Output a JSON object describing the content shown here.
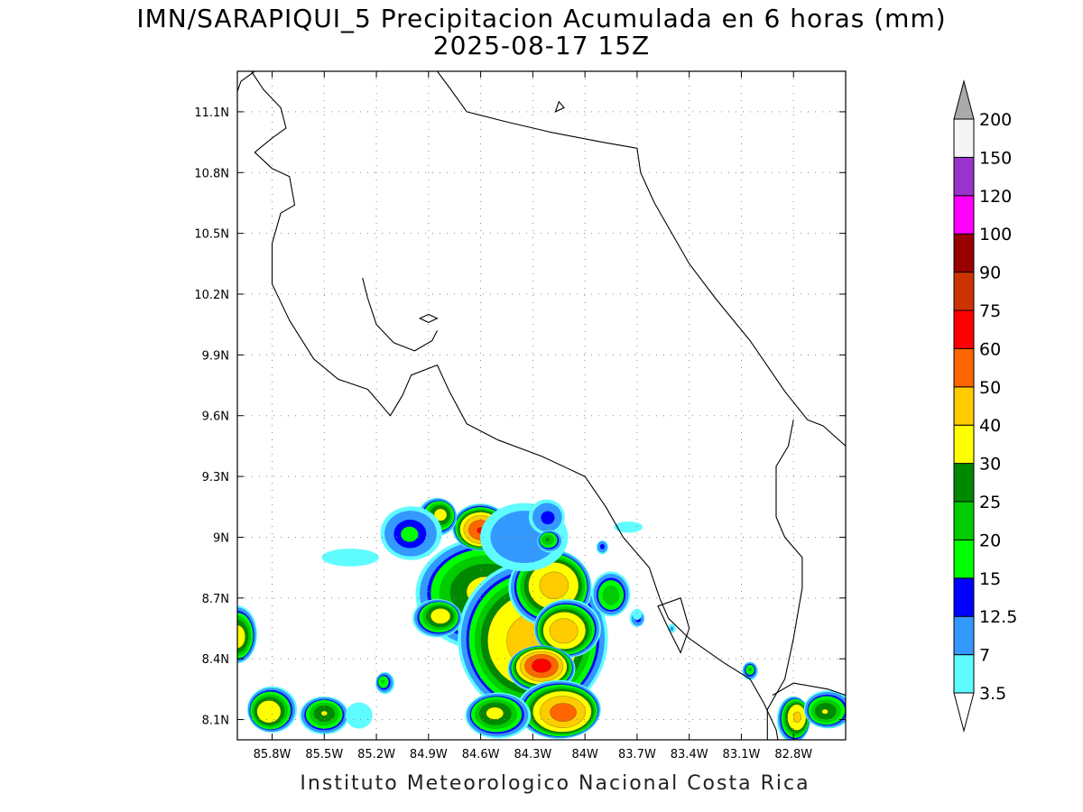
{
  "title": "IMN/SARAPIQUI_5 Precipitacion Acumulada en 6 horas (mm)",
  "subtitle": "2025-08-17 15Z",
  "credit": "Instituto Meteorologico Nacional Costa Rica",
  "map": {
    "lon_range": [
      -86.0,
      -82.5
    ],
    "lat_range": [
      8.0,
      11.3
    ],
    "lon_ticks": [
      {
        "value": -85.8,
        "label": "85.8W"
      },
      {
        "value": -85.5,
        "label": "85.5W"
      },
      {
        "value": -85.2,
        "label": "85.2W"
      },
      {
        "value": -84.9,
        "label": "84.9W"
      },
      {
        "value": -84.6,
        "label": "84.6W"
      },
      {
        "value": -84.3,
        "label": "84.3W"
      },
      {
        "value": -84.0,
        "label": "84W"
      },
      {
        "value": -83.7,
        "label": "83.7W"
      },
      {
        "value": -83.4,
        "label": "83.4W"
      },
      {
        "value": -83.1,
        "label": "83.1W"
      },
      {
        "value": -82.8,
        "label": "82.8W"
      }
    ],
    "lat_ticks": [
      {
        "value": 8.1,
        "label": "8.1N"
      },
      {
        "value": 8.4,
        "label": "8.4N"
      },
      {
        "value": 8.7,
        "label": "8.7N"
      },
      {
        "value": 9.0,
        "label": "9N"
      },
      {
        "value": 9.3,
        "label": "9.3N"
      },
      {
        "value": 9.6,
        "label": "9.6N"
      },
      {
        "value": 9.9,
        "label": "9.9N"
      },
      {
        "value": 10.2,
        "label": "10.2N"
      },
      {
        "value": 10.5,
        "label": "10.5N"
      },
      {
        "value": 10.8,
        "label": "10.8N"
      },
      {
        "value": 11.1,
        "label": "11.1N"
      }
    ],
    "grid": true,
    "coastline": [
      [
        [
          -85.92,
          11.3
        ],
        [
          -85.85,
          11.21
        ],
        [
          -85.75,
          11.12
        ],
        [
          -85.72,
          11.02
        ],
        [
          -85.8,
          10.97
        ],
        [
          -85.9,
          10.9
        ],
        [
          -85.8,
          10.82
        ],
        [
          -85.7,
          10.78
        ],
        [
          -85.67,
          10.64
        ],
        [
          -85.75,
          10.6
        ],
        [
          -85.8,
          10.45
        ],
        [
          -85.8,
          10.25
        ],
        [
          -85.7,
          10.07
        ],
        [
          -85.56,
          9.88
        ],
        [
          -85.42,
          9.78
        ],
        [
          -85.25,
          9.73
        ],
        [
          -85.12,
          9.6
        ],
        [
          -85.05,
          9.7
        ],
        [
          -85.0,
          9.8
        ],
        [
          -84.85,
          9.85
        ],
        [
          -84.78,
          9.72
        ],
        [
          -84.68,
          9.56
        ],
        [
          -84.5,
          9.48
        ],
        [
          -84.25,
          9.4
        ],
        [
          -84.0,
          9.3
        ],
        [
          -83.88,
          9.15
        ],
        [
          -83.78,
          9.0
        ],
        [
          -83.63,
          8.85
        ],
        [
          -83.57,
          8.7
        ],
        [
          -83.52,
          8.6
        ],
        [
          -83.4,
          8.5
        ],
        [
          -83.2,
          8.38
        ],
        [
          -83.05,
          8.3
        ],
        [
          -82.97,
          8.18
        ],
        [
          -82.9,
          8.05
        ],
        [
          -82.89,
          8.0
        ]
      ],
      [
        [
          -84.85,
          10.02
        ],
        [
          -84.88,
          9.97
        ],
        [
          -84.98,
          9.92
        ],
        [
          -85.1,
          9.96
        ],
        [
          -85.2,
          10.05
        ],
        [
          -85.25,
          10.18
        ],
        [
          -85.28,
          10.28
        ]
      ],
      [
        [
          -84.85,
          11.3
        ],
        [
          -84.78,
          11.22
        ],
        [
          -84.68,
          11.1
        ],
        [
          -84.45,
          11.05
        ],
        [
          -84.2,
          11.0
        ],
        [
          -83.9,
          10.95
        ],
        [
          -83.7,
          10.92
        ],
        [
          -83.68,
          10.8
        ],
        [
          -83.6,
          10.65
        ],
        [
          -83.4,
          10.35
        ],
        [
          -83.25,
          10.18
        ],
        [
          -83.05,
          9.97
        ],
        [
          -82.85,
          9.72
        ],
        [
          -82.72,
          9.58
        ],
        [
          -82.63,
          9.55
        ],
        [
          -82.5,
          9.45
        ]
      ],
      [
        [
          -82.8,
          9.58
        ],
        [
          -82.83,
          9.45
        ],
        [
          -82.9,
          9.35
        ],
        [
          -82.9,
          9.1
        ],
        [
          -82.85,
          9.0
        ],
        [
          -82.75,
          8.9
        ],
        [
          -82.75,
          8.75
        ],
        [
          -82.8,
          8.5
        ],
        [
          -82.85,
          8.3
        ],
        [
          -82.95,
          8.15
        ],
        [
          -82.95,
          8.0
        ]
      ],
      [
        [
          -82.92,
          8.22
        ],
        [
          -82.8,
          8.28
        ],
        [
          -82.6,
          8.25
        ],
        [
          -82.5,
          8.22
        ]
      ],
      [
        [
          -85.9,
          11.3
        ],
        [
          -85.98,
          11.25
        ],
        [
          -86.0,
          11.2
        ]
      ]
    ],
    "islands": [
      [
        [
          -84.15,
          11.15
        ],
        [
          -84.12,
          11.12
        ],
        [
          -84.17,
          11.1
        ],
        [
          -84.15,
          11.15
        ]
      ],
      [
        [
          -84.9,
          10.1
        ],
        [
          -84.85,
          10.08
        ],
        [
          -84.9,
          10.06
        ],
        [
          -84.95,
          10.08
        ],
        [
          -84.9,
          10.1
        ]
      ],
      [
        [
          -83.58,
          8.66
        ],
        [
          -83.45,
          8.7
        ],
        [
          -83.4,
          8.55
        ],
        [
          -83.45,
          8.43
        ],
        [
          -83.52,
          8.55
        ],
        [
          -83.58,
          8.66
        ]
      ]
    ],
    "rain_cells": [
      {
        "lon": -84.55,
        "lat": 8.72,
        "rx": 0.45,
        "ry": 0.3,
        "peak": 32
      },
      {
        "lon": -84.3,
        "lat": 8.5,
        "rx": 0.45,
        "ry": 0.4,
        "peak": 45
      },
      {
        "lon": -84.2,
        "lat": 8.75,
        "rx": 0.25,
        "ry": 0.2,
        "peak": 45
      },
      {
        "lon": -84.1,
        "lat": 8.55,
        "rx": 0.2,
        "ry": 0.15,
        "peak": 48
      },
      {
        "lon": -84.25,
        "lat": 8.35,
        "rx": 0.2,
        "ry": 0.12,
        "peak": 65
      },
      {
        "lon": -84.15,
        "lat": 8.15,
        "rx": 0.25,
        "ry": 0.15,
        "peak": 55
      },
      {
        "lon": -84.5,
        "lat": 8.12,
        "rx": 0.2,
        "ry": 0.12,
        "peak": 32
      },
      {
        "lon": -84.6,
        "lat": 9.05,
        "rx": 0.17,
        "ry": 0.12,
        "peak": 60
      },
      {
        "lon": -84.85,
        "lat": 9.1,
        "rx": 0.12,
        "ry": 0.1,
        "peak": 33
      },
      {
        "lon": -85.0,
        "lat": 9.02,
        "rx": 0.2,
        "ry": 0.15,
        "peak": 16
      },
      {
        "lon": -84.35,
        "lat": 9.0,
        "rx": 0.3,
        "ry": 0.2,
        "peak": 12
      },
      {
        "lon": -84.22,
        "lat": 9.1,
        "rx": 0.12,
        "ry": 0.1,
        "peak": 14
      },
      {
        "lon": -84.2,
        "lat": 8.98,
        "rx": 0.08,
        "ry": 0.06,
        "peak": 25
      },
      {
        "lon": -83.85,
        "lat": 8.72,
        "rx": 0.12,
        "ry": 0.12,
        "peak": 24
      },
      {
        "lon": -84.85,
        "lat": 8.6,
        "rx": 0.15,
        "ry": 0.1,
        "peak": 35
      },
      {
        "lon": -85.8,
        "lat": 8.15,
        "rx": 0.15,
        "ry": 0.12,
        "peak": 38
      },
      {
        "lon": -85.5,
        "lat": 8.12,
        "rx": 0.15,
        "ry": 0.1,
        "peak": 30
      },
      {
        "lon": -85.3,
        "lat": 8.12,
        "rx": 0.12,
        "ry": 0.1,
        "peak": 6
      },
      {
        "lon": -85.15,
        "lat": 8.28,
        "rx": 0.06,
        "ry": 0.06,
        "peak": 20
      },
      {
        "lon": -86.0,
        "lat": 8.52,
        "rx": 0.12,
        "ry": 0.15,
        "peak": 35
      },
      {
        "lon": -82.8,
        "lat": 8.1,
        "rx": 0.1,
        "ry": 0.12,
        "peak": 42
      },
      {
        "lon": -82.6,
        "lat": 8.15,
        "rx": 0.15,
        "ry": 0.1,
        "peak": 30
      },
      {
        "lon": -83.05,
        "lat": 8.34,
        "rx": 0.05,
        "ry": 0.05,
        "peak": 20
      },
      {
        "lon": -83.7,
        "lat": 8.6,
        "rx": 0.05,
        "ry": 0.05,
        "peak": 14
      },
      {
        "lon": -85.35,
        "lat": 8.9,
        "rx": 0.3,
        "ry": 0.08,
        "peak": 5
      },
      {
        "lon": -83.5,
        "lat": 8.55,
        "rx": 0.03,
        "ry": 0.03,
        "peak": 8
      },
      {
        "lon": -83.7,
        "lat": 8.62,
        "rx": 0.05,
        "ry": 0.05,
        "peak": 5
      },
      {
        "lon": -83.75,
        "lat": 9.05,
        "rx": 0.15,
        "ry": 0.05,
        "peak": 5
      },
      {
        "lon": -83.9,
        "lat": 8.95,
        "rx": 0.04,
        "ry": 0.04,
        "peak": 14
      }
    ]
  },
  "colorbar": {
    "levels": [
      "3.5",
      "7",
      "12.5",
      "15",
      "20",
      "25",
      "30",
      "40",
      "50",
      "60",
      "75",
      "90",
      "100",
      "120",
      "150",
      "200"
    ],
    "colors": [
      "#ffffff",
      "#5ffcff",
      "#3399ff",
      "#0000ff",
      "#00ff00",
      "#00cc00",
      "#008800",
      "#ffff00",
      "#ffcc00",
      "#ff6600",
      "#ff0000",
      "#cc3300",
      "#990000",
      "#ff00ff",
      "#9933cc",
      "#f5f5f5",
      "#aaaaaa"
    ]
  }
}
